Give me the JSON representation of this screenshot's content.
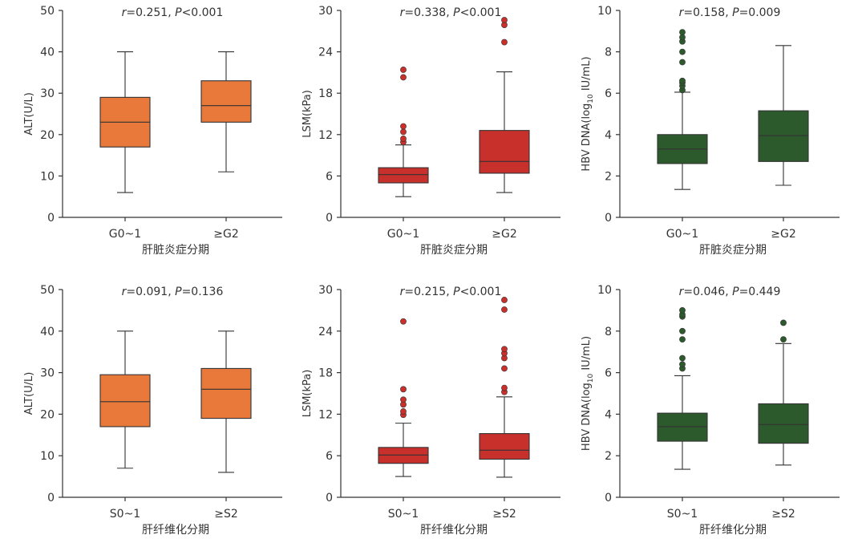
{
  "colors": {
    "orange": "#E8793B",
    "red": "#C8302C",
    "green": "#2D5A2D",
    "axis": "#333333"
  },
  "chart_data": [
    {
      "type": "box",
      "color": "orange",
      "ylabel": "ALT(U/L)",
      "xlabel": "肝脏炎症分期",
      "ylim": [
        0,
        50
      ],
      "yticks": [
        "0",
        "10",
        "20",
        "30",
        "40",
        "50"
      ],
      "yticks_values": [
        0,
        10,
        20,
        30,
        40,
        50
      ],
      "annotation": {
        "r_label": "r",
        "r_text": "=0.251, ",
        "p_label": "P",
        "p_text": "<0.001"
      },
      "categories": [
        "G0~1",
        "≥G2"
      ],
      "boxes": [
        {
          "whisker_low": 6,
          "q1": 17,
          "median": 23,
          "q3": 29,
          "whisker_high": 40,
          "outliers": []
        },
        {
          "whisker_low": 11,
          "q1": 23,
          "median": 27,
          "q3": 33,
          "whisker_high": 40,
          "outliers": []
        }
      ]
    },
    {
      "type": "box",
      "color": "red",
      "ylabel": "LSM(kPa)",
      "xlabel": "肝脏炎症分期",
      "ylim": [
        0,
        30
      ],
      "yticks": [
        "0",
        "6",
        "12",
        "18",
        "24",
        "30"
      ],
      "yticks_values": [
        0,
        6,
        12,
        18,
        24,
        30
      ],
      "annotation": {
        "r_label": "r",
        "r_text": "=0.338, ",
        "p_label": "P",
        "p_text": "<0.001"
      },
      "categories": [
        "G0~1",
        "≥G2"
      ],
      "boxes": [
        {
          "whisker_low": 3,
          "q1": 5,
          "median": 6.2,
          "q3": 7.2,
          "whisker_high": 10.5,
          "outliers": [
            10.9,
            11.4,
            12.4,
            13.2,
            20.3,
            21.4
          ]
        },
        {
          "whisker_low": 3.6,
          "q1": 6.4,
          "median": 8.1,
          "q3": 12.6,
          "whisker_high": 21.1,
          "outliers": [
            25.4,
            27.9,
            28.6
          ]
        }
      ]
    },
    {
      "type": "box",
      "color": "green",
      "ylabel": "HBV DNA(log",
      "ylabel_sub": "10",
      "ylabel_end": " IU/mL)",
      "xlabel": "肝脏炎症分期",
      "ylim": [
        0,
        10
      ],
      "yticks": [
        "0",
        "2",
        "4",
        "6",
        "8",
        "10"
      ],
      "yticks_values": [
        0,
        2,
        4,
        6,
        8,
        10
      ],
      "annotation": {
        "r_label": "r",
        "r_text": "=0.158, ",
        "p_label": "P",
        "p_text": "=0.009"
      },
      "categories": [
        "G0~1",
        "≥G2"
      ],
      "boxes": [
        {
          "whisker_low": 1.35,
          "q1": 2.6,
          "median": 3.3,
          "q3": 4.0,
          "whisker_high": 6.05,
          "outliers": [
            6.15,
            6.35,
            6.5,
            6.6,
            7.5,
            8.0,
            8.5,
            8.7,
            8.95
          ]
        },
        {
          "whisker_low": 1.55,
          "q1": 2.7,
          "median": 3.95,
          "q3": 5.15,
          "whisker_high": 8.3,
          "outliers": []
        }
      ]
    },
    {
      "type": "box",
      "color": "orange",
      "ylabel": "ALT(U/L)",
      "xlabel": "肝纤维化分期",
      "ylim": [
        0,
        50
      ],
      "yticks": [
        "0",
        "10",
        "20",
        "30",
        "40",
        "50"
      ],
      "yticks_values": [
        0,
        10,
        20,
        30,
        40,
        50
      ],
      "annotation": {
        "r_label": "r",
        "r_text": "=0.091, ",
        "p_label": "P",
        "p_text": "=0.136"
      },
      "categories": [
        "S0~1",
        "≥S2"
      ],
      "boxes": [
        {
          "whisker_low": 7,
          "q1": 17,
          "median": 23,
          "q3": 29.5,
          "whisker_high": 40,
          "outliers": []
        },
        {
          "whisker_low": 6,
          "q1": 19,
          "median": 26,
          "q3": 31,
          "whisker_high": 40,
          "outliers": []
        }
      ]
    },
    {
      "type": "box",
      "color": "red",
      "ylabel": "LSM(kPa)",
      "xlabel": "肝纤维化分期",
      "ylim": [
        0,
        30
      ],
      "yticks": [
        "0",
        "6",
        "12",
        "18",
        "24",
        "30"
      ],
      "yticks_values": [
        0,
        6,
        12,
        18,
        24,
        30
      ],
      "annotation": {
        "r_label": "r",
        "r_text": "=0.215, ",
        "p_label": "P",
        "p_text": "<0.001"
      },
      "categories": [
        "S0~1",
        "≥S2"
      ],
      "boxes": [
        {
          "whisker_low": 3,
          "q1": 4.9,
          "median": 6.1,
          "q3": 7.2,
          "whisker_high": 10.7,
          "outliers": [
            11.9,
            12.4,
            13.4,
            14.1,
            15.6,
            25.4
          ]
        },
        {
          "whisker_low": 2.9,
          "q1": 5.5,
          "median": 6.8,
          "q3": 9.2,
          "whisker_high": 14.5,
          "outliers": [
            15.2,
            15.8,
            18.6,
            20.1,
            20.8,
            21.4,
            27.1,
            28.5
          ]
        }
      ]
    },
    {
      "type": "box",
      "color": "green",
      "ylabel": "HBV DNA(log",
      "ylabel_sub": "10",
      "ylabel_end": " IU/mL)",
      "xlabel": "肝纤维化分期",
      "ylim": [
        0,
        10
      ],
      "yticks": [
        "0",
        "2",
        "4",
        "6",
        "8",
        "10"
      ],
      "yticks_values": [
        0,
        2,
        4,
        6,
        8,
        10
      ],
      "annotation": {
        "r_label": "r",
        "r_text": "=0.046, ",
        "p_label": "P",
        "p_text": "=0.449"
      },
      "categories": [
        "S0~1",
        "≥S2"
      ],
      "boxes": [
        {
          "whisker_low": 1.35,
          "q1": 2.7,
          "median": 3.4,
          "q3": 4.05,
          "whisker_high": 5.85,
          "outliers": [
            6.2,
            6.4,
            6.7,
            7.6,
            8.0,
            8.7,
            8.8,
            9.0
          ]
        },
        {
          "whisker_low": 1.55,
          "q1": 2.6,
          "median": 3.5,
          "q3": 4.5,
          "whisker_high": 7.4,
          "outliers": [
            7.6,
            8.4
          ]
        }
      ]
    }
  ]
}
